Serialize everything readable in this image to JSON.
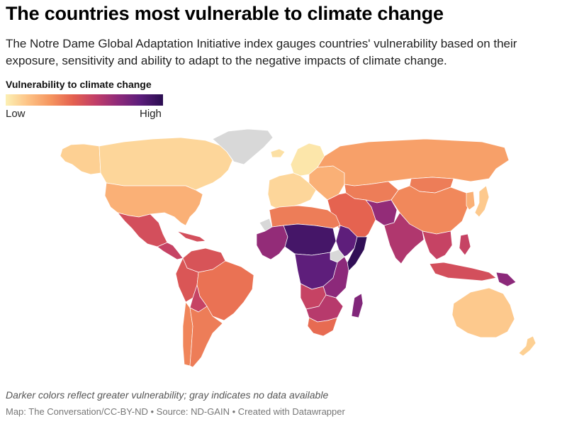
{
  "header": {
    "title": "The countries most vulnerable to climate change",
    "subtitle": "The Notre Dame Global Adaptation Initiative index gauges countries' vulnerability based on their exposure, sensitivity and ability to adapt to the negative impacts of climate change."
  },
  "legend": {
    "title": "Vulnerability to climate change",
    "low_label": "Low",
    "high_label": "High",
    "colors": [
      "#fcf0b4",
      "#fdc285",
      "#f5955f",
      "#e4604f",
      "#c13e68",
      "#8e2a7a",
      "#5b1d7b",
      "#2a0d50"
    ],
    "no_data_color": "#d8d8d8"
  },
  "map": {
    "regions": [
      {
        "name": "Canada",
        "level": 0.08
      },
      {
        "name": "Alaska",
        "level": 0.1
      },
      {
        "name": "Greenland",
        "level": null
      },
      {
        "name": "United States",
        "level": 0.2
      },
      {
        "name": "Mexico",
        "level": 0.5
      },
      {
        "name": "Central America",
        "level": 0.55
      },
      {
        "name": "Caribbean",
        "level": 0.5
      },
      {
        "name": "Colombia & Venezuela",
        "level": 0.48
      },
      {
        "name": "Peru & Ecuador",
        "level": 0.47
      },
      {
        "name": "Brazil",
        "level": 0.38
      },
      {
        "name": "Bolivia",
        "level": 0.55
      },
      {
        "name": "Argentina",
        "level": 0.35
      },
      {
        "name": "Chile",
        "level": 0.33
      },
      {
        "name": "Iceland",
        "level": 0.05
      },
      {
        "name": "Scandinavia",
        "level": 0.03
      },
      {
        "name": "Western Europe",
        "level": 0.08
      },
      {
        "name": "Eastern Europe",
        "level": 0.2
      },
      {
        "name": "Russia",
        "level": 0.25
      },
      {
        "name": "Central Asia",
        "level": 0.35
      },
      {
        "name": "Middle East",
        "level": 0.42
      },
      {
        "name": "Afghanistan & Pakistan",
        "level": 0.7
      },
      {
        "name": "South Asia",
        "level": 0.62
      },
      {
        "name": "China",
        "level": 0.32
      },
      {
        "name": "Mongolia",
        "level": 0.35
      },
      {
        "name": "Southeast Asia",
        "level": 0.55
      },
      {
        "name": "Korea",
        "level": 0.2
      },
      {
        "name": "Japan",
        "level": 0.12
      },
      {
        "name": "Philippines",
        "level": 0.55
      },
      {
        "name": "Indonesia",
        "level": 0.5
      },
      {
        "name": "Papua New Guinea",
        "level": 0.72
      },
      {
        "name": "Australia",
        "level": 0.12
      },
      {
        "name": "New Zealand",
        "level": 0.1
      },
      {
        "name": "North Africa",
        "level": 0.35
      },
      {
        "name": "Western Sahara",
        "level": null
      },
      {
        "name": "West Africa",
        "level": 0.7
      },
      {
        "name": "Sahel",
        "level": 0.92
      },
      {
        "name": "Horn of Africa",
        "level": 0.85
      },
      {
        "name": "Somalia",
        "level": 0.98
      },
      {
        "name": "South Sudan",
        "level": null
      },
      {
        "name": "Central Africa",
        "level": 0.85
      },
      {
        "name": "East Africa",
        "level": 0.72
      },
      {
        "name": "Angola",
        "level": 0.55
      },
      {
        "name": "Southern Africa",
        "level": 0.6
      },
      {
        "name": "South Africa",
        "level": 0.4
      },
      {
        "name": "Madagascar",
        "level": 0.75
      }
    ]
  },
  "note": "Darker colors reflect greater vulnerability; gray indicates no data available",
  "footer": {
    "map_credit": "Map: The Conversation/CC-BY-ND",
    "source": "Source: ND-GAIN",
    "created_with": "Created with Datawrapper",
    "separator": "•"
  }
}
